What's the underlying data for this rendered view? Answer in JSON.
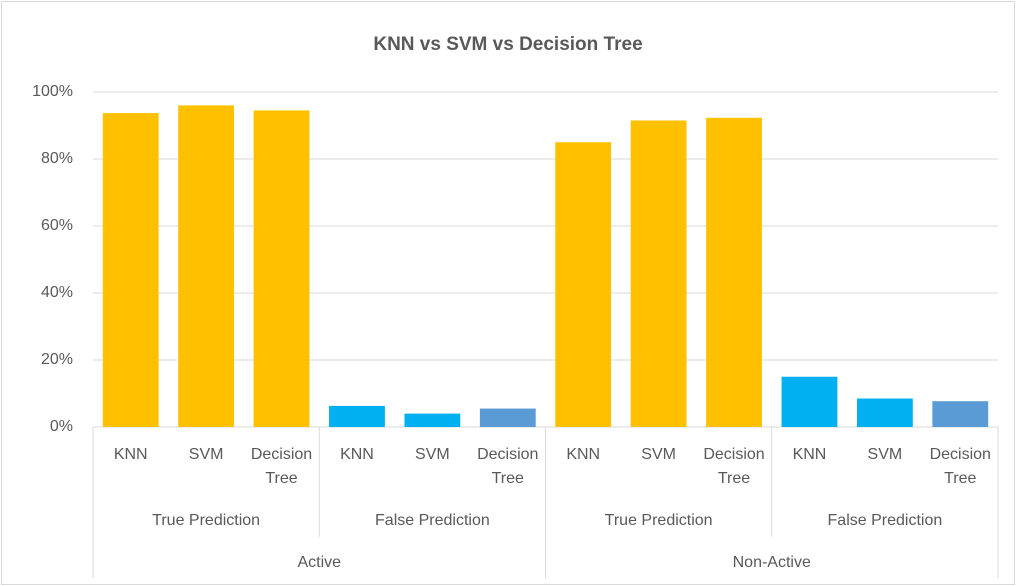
{
  "chart_data": {
    "type": "bar",
    "title": "KNN vs SVM vs Decision Tree",
    "ylim": [
      0,
      100
    ],
    "yticks": [
      {
        "value": 0,
        "label": "0%"
      },
      {
        "value": 20,
        "label": "20%"
      },
      {
        "value": 40,
        "label": "40%"
      },
      {
        "value": 60,
        "label": "60%"
      },
      {
        "value": 80,
        "label": "80%"
      },
      {
        "value": 100,
        "label": "100%"
      }
    ],
    "grid": true,
    "groups": [
      {
        "name": "Active",
        "subgroups": [
          {
            "name": "True Prediction",
            "categories": [
              "KNN",
              "SVM",
              "Decision Tree"
            ],
            "values": [
              93.7,
              96,
              94.5
            ],
            "colors": [
              "#ffc000",
              "#ffc000",
              "#ffc000"
            ]
          },
          {
            "name": "False Prediction",
            "categories": [
              "KNN",
              "SVM",
              "Decision Tree"
            ],
            "values": [
              6.3,
              4,
              5.5
            ],
            "colors": [
              "#00b0f0",
              "#00b0f0",
              "#5b9bd5"
            ]
          }
        ]
      },
      {
        "name": "Non-Active",
        "subgroups": [
          {
            "name": "True Prediction",
            "categories": [
              "KNN",
              "SVM",
              "Decision Tree"
            ],
            "values": [
              85,
              91.5,
              92.3
            ],
            "colors": [
              "#ffc000",
              "#ffc000",
              "#ffc000"
            ]
          },
          {
            "name": "False Prediction",
            "categories": [
              "KNN",
              "SVM",
              "Decision Tree"
            ],
            "values": [
              15,
              8.5,
              7.7
            ],
            "colors": [
              "#00b0f0",
              "#00b0f0",
              "#5b9bd5"
            ]
          }
        ]
      }
    ]
  }
}
